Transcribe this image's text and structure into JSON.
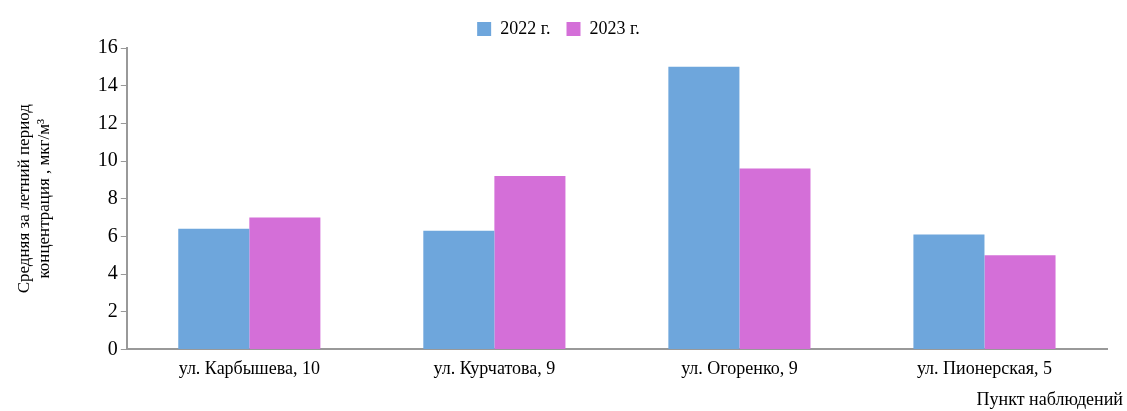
{
  "chart_data": {
    "type": "bar",
    "ylabel": "Средняя за летний период\nконцентрация , мкг/м³",
    "xlabel": "Пункт наблюдений",
    "categories": [
      "ул. Карбышева, 10",
      "ул. Курчатова, 9",
      "ул. Огоренко, 9",
      "ул. Пионерская, 5"
    ],
    "series": [
      {
        "name": "2022 г.",
        "color": "#6ea6dc",
        "values": [
          6.4,
          6.3,
          15.0,
          6.1
        ]
      },
      {
        "name": "2023 г.",
        "color": "#d46fd8",
        "values": [
          7.0,
          9.2,
          9.6,
          5.0
        ]
      }
    ],
    "ylim": [
      0,
      16
    ],
    "yticks": [
      0,
      2,
      4,
      6,
      8,
      10,
      12,
      14,
      16
    ],
    "grid": false,
    "legend": "top"
  }
}
